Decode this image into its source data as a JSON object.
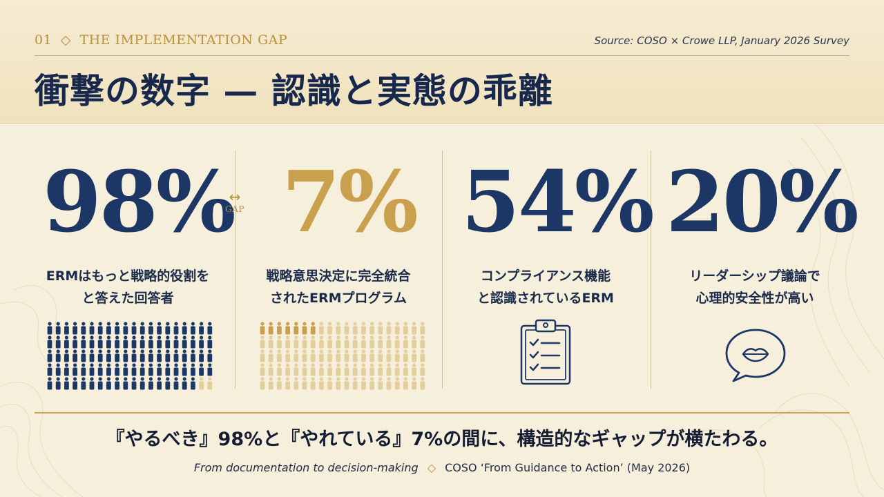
{
  "header": {
    "kicker_number": "01",
    "kicker_separator": "◇",
    "kicker_text": "THE IMPLEMENTATION GAP",
    "source": "Source: COSO × Crowe LLP, January 2026 Survey",
    "title": "衝撃の数字 — 認識と実態の乖離"
  },
  "stats": [
    {
      "value": "98%",
      "label_line1": "ERMはもっと戦略的役割を",
      "label_line2": "と答えた回答者",
      "share": 0.98
    },
    {
      "value": "7%",
      "label_line1": "戦略意思決定に完全統合",
      "label_line2": "されたERMプログラム",
      "share": 0.07
    },
    {
      "value": "54%",
      "label_line1": "コンプライアンス機能",
      "label_line2": "と認識されているERM",
      "icon": "clipboard-checklist-icon"
    },
    {
      "value": "20%",
      "label_line1": "リーダーシップ議論で",
      "label_line2": "心理的安全性が高い",
      "icon": "speech-bubble-lips-icon"
    }
  ],
  "gap": {
    "arrow": "↔",
    "label": "GAP"
  },
  "takeaway": "『やるべき』98%と『やれている』7%の間に、構造的なギャップが横たわる。",
  "footnote": {
    "left": "From documentation to decision-making",
    "separator": "◇",
    "right": "COSO ‘From Guidance to Action’ (May 2026)"
  },
  "colors": {
    "navy": "#1c3765",
    "gold": "#c9a04e",
    "pale_gold": "#e3cf9e",
    "background": "#f6efdc"
  }
}
